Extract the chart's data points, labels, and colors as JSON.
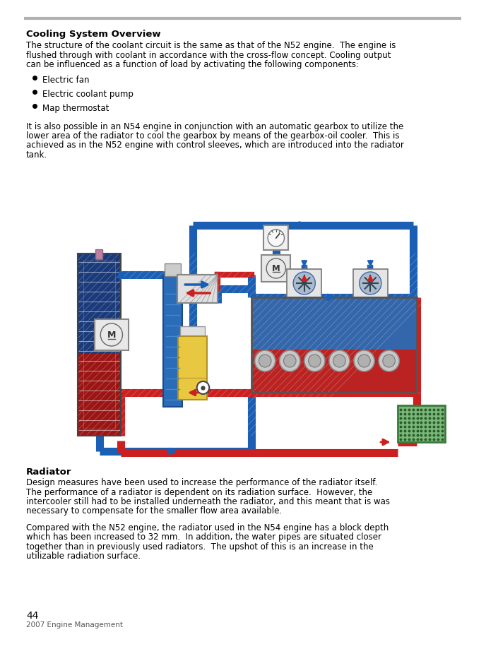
{
  "title": "Cooling System Overview",
  "intro_text": "The structure of the coolant circuit is the same as that of the N52 engine.  The engine is\nflushed through with coolant in accordance with the cross-flow concept. Cooling output\ncan be influenced as a function of load by activating the following components:",
  "bullet_points": [
    "Electric fan",
    "Electric coolant pump",
    "Map thermostat"
  ],
  "body_text": "It is also possible in an N54 engine in conjunction with an automatic gearbox to utilize the\nlower area of the radiator to cool the gearbox by means of the gearbox-oil cooler.  This is\nachieved as in the N52 engine with control sleeves, which are introduced into the radiator\ntank.",
  "section2_title": "Radiator",
  "section2_para1": "Design measures have been used to increase the performance of the radiator itself.\nThe performance of a radiator is dependent on its radiation surface.  However, the\nintercooler still had to be installed underneath the radiator, and this meant that is was\nnecessary to compensate for the smaller flow area available.",
  "section2_para2": "Compared with the N52 engine, the radiator used in the N54 engine has a block depth\nwhich has been increased to 32 mm.  In addition, the water pipes are situated closer\ntogether than in previously used radiators.  The upshot of this is an increase in the\nutilizable radiation surface.",
  "page_number": "44",
  "footer_text": "2007 Engine Management",
  "separator_color": "#b0b0b0",
  "bg_color": "#ffffff",
  "text_color": "#000000",
  "blue": "#1a5fb4",
  "red": "#cc1f1f",
  "dark_blue_rad": "#1a3a7a",
  "dark_red_rad": "#9b1515"
}
